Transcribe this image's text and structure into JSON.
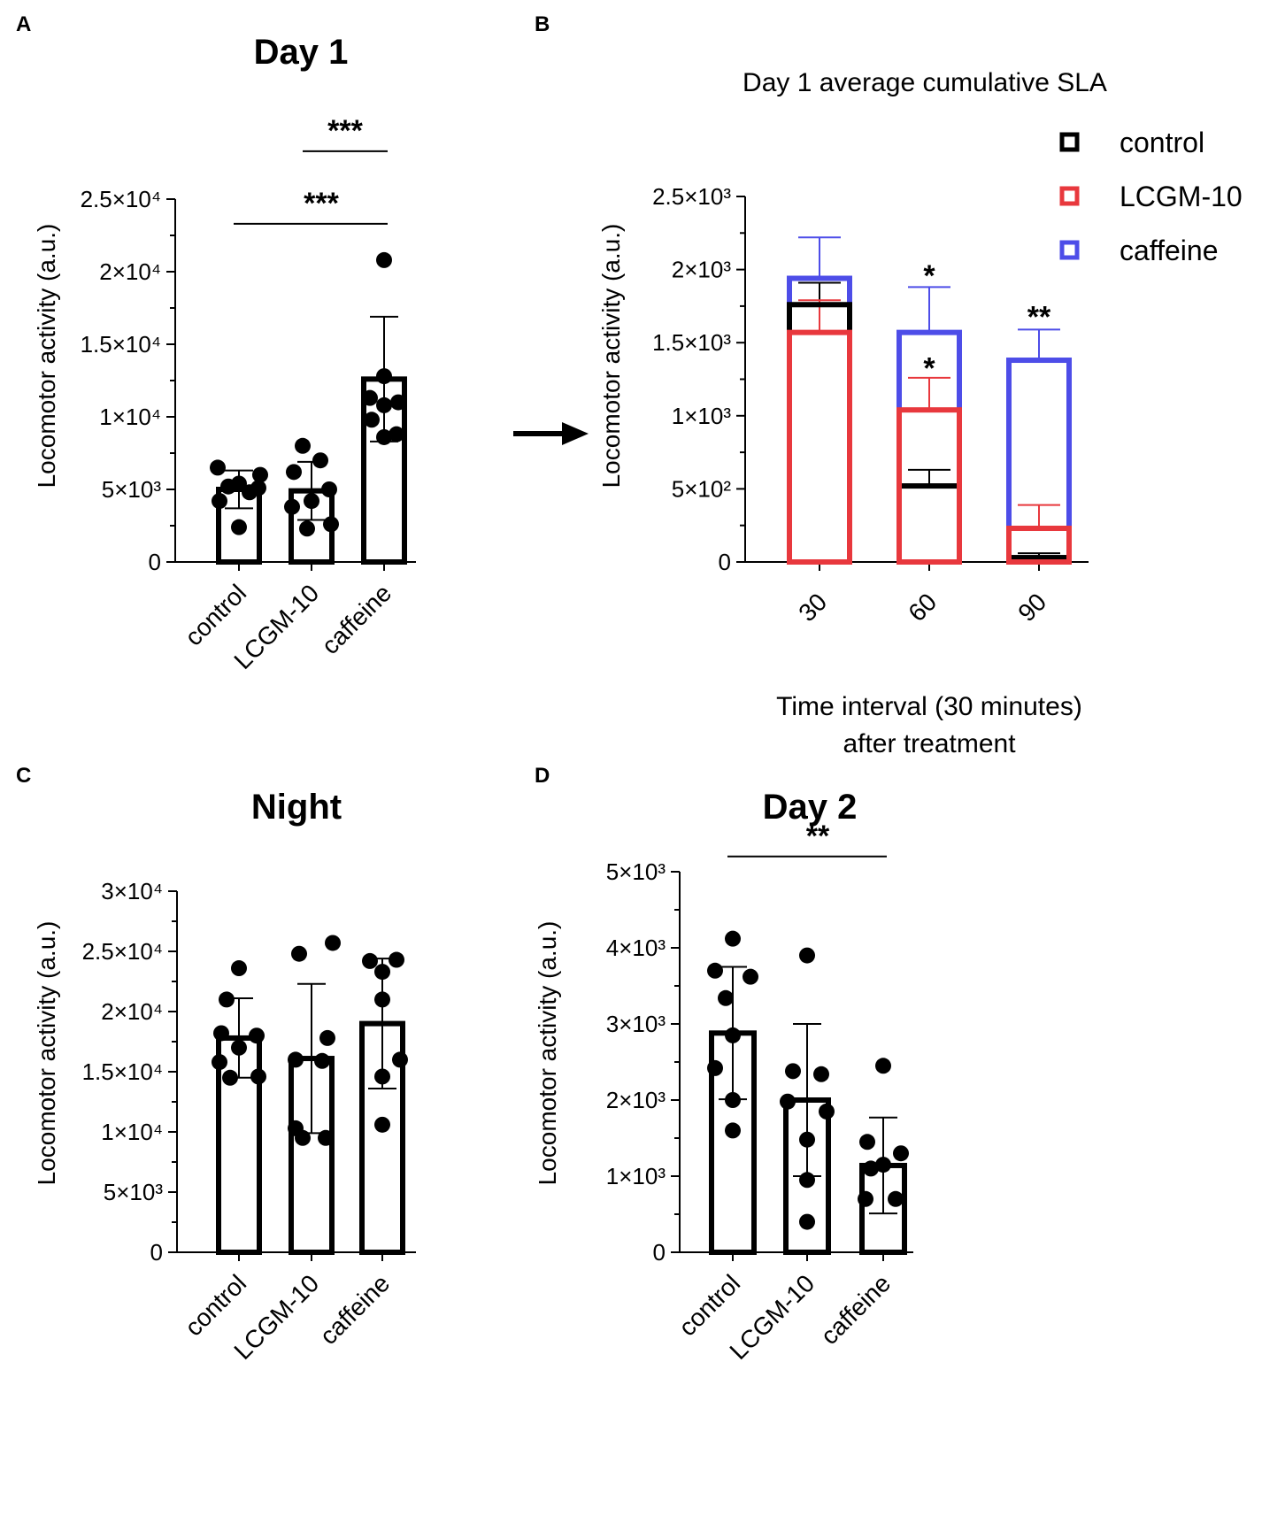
{
  "chart_data": [
    {
      "panel": "A",
      "type": "bar",
      "title": "Day 1",
      "ylabel": "Locomotor activity (a.u.)",
      "xlabel": "",
      "ylim": [
        0,
        25000
      ],
      "ticks": [
        {
          "value": 0,
          "label": "0"
        },
        {
          "value": 5000,
          "label": "5×10³"
        },
        {
          "value": 10000,
          "label": "1×10⁴"
        },
        {
          "value": 15000,
          "label": "1.5×10⁴"
        },
        {
          "value": 20000,
          "label": "2×10⁴"
        },
        {
          "value": 25000,
          "label": "2.5×10⁴"
        }
      ],
      "categories": [
        "control",
        "LCGM-10",
        "caffeine"
      ],
      "values": [
        5000,
        4900,
        12600
      ],
      "sd": [
        1300,
        2000,
        4300
      ],
      "points": [
        [
          5400,
          6500,
          6000,
          5200,
          4800,
          4200,
          5100,
          2400
        ],
        [
          8000,
          7000,
          6200,
          5000,
          4200,
          3800,
          2600,
          2300
        ],
        [
          20800,
          12800,
          11300,
          11000,
          10800,
          9800,
          8800,
          8600
        ]
      ],
      "significance": [
        {
          "from": 1,
          "to": 2,
          "label": "***",
          "y": 28300
        },
        {
          "from": 0,
          "to": 2,
          "label": "***",
          "y": 23300
        }
      ]
    },
    {
      "panel": "B",
      "type": "bar",
      "title": "Day 1 average cumulative SLA",
      "ylabel": "Locomotor activity (a.u.)",
      "xlabel": "Time interval (30 minutes)",
      "xlabel2": "after treatment",
      "ylim": [
        0,
        2500
      ],
      "ticks": [
        {
          "value": 0,
          "label": "0"
        },
        {
          "value": 500,
          "label": "5×10²"
        },
        {
          "value": 1000,
          "label": "1×10³"
        },
        {
          "value": 1500,
          "label": "1.5×10³"
        },
        {
          "value": 2000,
          "label": "2×10³"
        },
        {
          "value": 2500,
          "label": "2.5×10³"
        }
      ],
      "categories": [
        "30",
        "60",
        "90"
      ],
      "series": [
        {
          "name": "control",
          "color": "#000000",
          "values": [
            1760,
            520,
            30
          ],
          "sd": [
            150,
            110,
            30
          ]
        },
        {
          "name": "LCGM-10",
          "color": "#e8383d",
          "values": [
            1570,
            1040,
            230
          ],
          "sd": [
            220,
            220,
            160
          ]
        },
        {
          "name": "caffeine",
          "color": "#4d4de8",
          "values": [
            1940,
            1570,
            1380
          ],
          "sd": [
            280,
            310,
            210
          ]
        }
      ],
      "significance": [
        {
          "category": 1,
          "label": "*",
          "y": 1960
        },
        {
          "category": 1,
          "label": "*",
          "y": 1330
        },
        {
          "category": 2,
          "label": "**",
          "y": 1680
        }
      ],
      "legend": "top-right",
      "arrow": "→"
    },
    {
      "panel": "C",
      "type": "bar",
      "title": "Night",
      "ylabel": "Locomotor activity (a.u.)",
      "xlabel": "",
      "ylim": [
        0,
        30000
      ],
      "ticks": [
        {
          "value": 0,
          "label": "0"
        },
        {
          "value": 5000,
          "label": "5×10³"
        },
        {
          "value": 10000,
          "label": "1×10⁴"
        },
        {
          "value": 15000,
          "label": "1.5×10⁴"
        },
        {
          "value": 20000,
          "label": "2×10⁴"
        },
        {
          "value": 25000,
          "label": "2.5×10⁴"
        },
        {
          "value": 30000,
          "label": "3×10⁴"
        }
      ],
      "categories": [
        "control",
        "LCGM-10",
        "caffeine"
      ],
      "values": [
        17800,
        16100,
        19000
      ],
      "sd": [
        3300,
        6200,
        5400
      ],
      "points": [
        [
          23600,
          21000,
          18200,
          18000,
          17000,
          15800,
          14600,
          14500
        ],
        [
          24800,
          25700,
          17800,
          16000,
          15900,
          10300,
          9500,
          9500
        ],
        [
          24200,
          24300,
          23300,
          21000,
          16000,
          14600,
          10600
        ]
      ],
      "significance": []
    },
    {
      "panel": "D",
      "type": "bar",
      "title": "Day 2",
      "ylabel": "Locomotor activity (a.u.)",
      "xlabel": "",
      "ylim": [
        0,
        5000
      ],
      "ticks": [
        {
          "value": 0,
          "label": "0"
        },
        {
          "value": 1000,
          "label": "1×10³"
        },
        {
          "value": 2000,
          "label": "2×10³"
        },
        {
          "value": 3000,
          "label": "3×10³"
        },
        {
          "value": 4000,
          "label": "4×10³"
        },
        {
          "value": 5000,
          "label": "5×10³"
        }
      ],
      "categories": [
        "control",
        "LCGM-10",
        "caffeine"
      ],
      "values": [
        2880,
        2000,
        1140
      ],
      "sd": [
        870,
        1000,
        630
      ],
      "points": [
        [
          4120,
          3700,
          3620,
          3340,
          2850,
          2420,
          2000,
          1600
        ],
        [
          3900,
          2380,
          2340,
          1980,
          1850,
          1480,
          950,
          400
        ],
        [
          2450,
          1450,
          1300,
          1150,
          1100,
          700,
          700
        ]
      ],
      "significance": [
        {
          "from": 0,
          "to": 2,
          "label": "**",
          "y": 5200
        }
      ]
    }
  ]
}
